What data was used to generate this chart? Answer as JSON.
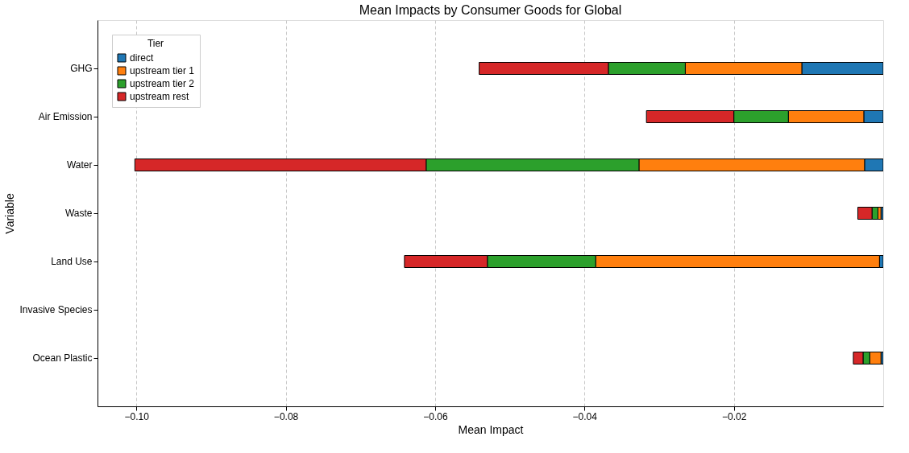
{
  "chart_data": {
    "type": "bar",
    "orientation": "horizontal",
    "stacked": true,
    "title": "Mean Impacts by Consumer Goods for Global",
    "xlabel": "Mean Impact",
    "ylabel": "Variable",
    "legend_title": "Tier",
    "categories": [
      "GHG",
      "Air Emission",
      "Water",
      "Waste",
      "Land Use",
      "Invasive Species",
      "Ocean Plastic"
    ],
    "series": [
      {
        "name": "direct",
        "color": "#1f77b4",
        "values": [
          -0.0109,
          -0.0026,
          -0.0025,
          -0.0003,
          -0.0005,
          null,
          -0.0003
        ]
      },
      {
        "name": "upstream tier 1",
        "color": "#ff7f0e",
        "values": [
          -0.0156,
          -0.0101,
          -0.0302,
          -0.0004,
          -0.038,
          null,
          -0.0015
        ]
      },
      {
        "name": "upstream tier 2",
        "color": "#2ca02c",
        "values": [
          -0.0103,
          -0.0073,
          -0.0285,
          -0.0008,
          -0.0145,
          null,
          -0.0009
        ]
      },
      {
        "name": "upstream rest",
        "color": "#d62728",
        "values": [
          -0.0173,
          -0.0117,
          -0.039,
          -0.0019,
          -0.0111,
          null,
          -0.0013
        ]
      }
    ],
    "xlim": [
      -0.1052,
      0
    ],
    "xticks": [
      {
        "value": -0.1,
        "label": "−0.10"
      },
      {
        "value": -0.08,
        "label": "−0.08"
      },
      {
        "value": -0.06,
        "label": "−0.06"
      },
      {
        "value": -0.04,
        "label": "−0.04"
      },
      {
        "value": -0.02,
        "label": "−0.02"
      }
    ],
    "grid": "x",
    "legend": "top left"
  }
}
